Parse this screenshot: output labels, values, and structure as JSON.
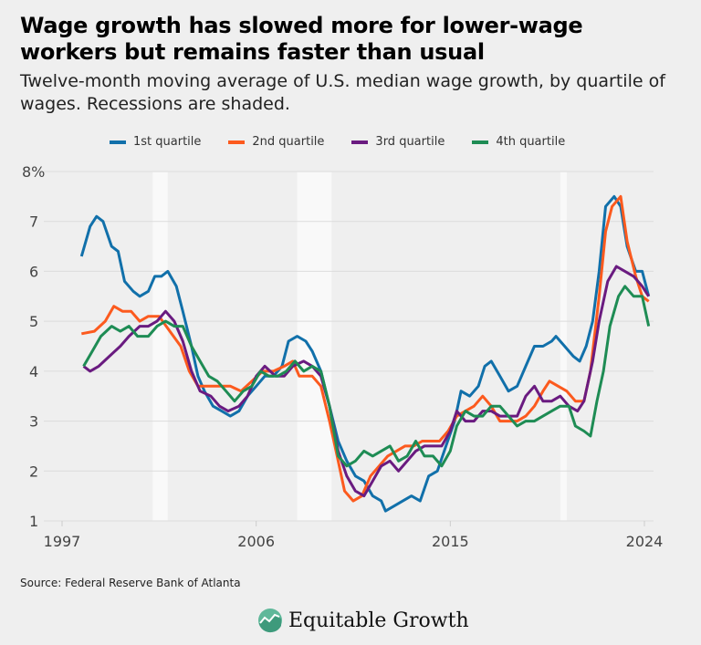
{
  "title": "Wage growth has slowed more for lower-wage workers but remains faster than usual",
  "subtitle": "Twelve-month moving average of U.S. median wage growth, by quartile of wages. Recessions are shaded.",
  "source": "Source: Federal Reserve Bank of Atlanta",
  "logo_text": "Equitable Growth",
  "chart_data": {
    "type": "line",
    "title": "Wage growth has slowed more for lower-wage workers but remains faster than usual",
    "xlabel": "",
    "ylabel": "",
    "xlim": [
      1997,
      2024.5
    ],
    "ylim": [
      1,
      8
    ],
    "x_ticks": [
      1997,
      2006,
      2015,
      2024
    ],
    "x_tick_labels": [
      "1997",
      "2006",
      "2015",
      "2024"
    ],
    "y_ticks": [
      1,
      2,
      3,
      4,
      5,
      6,
      7,
      8
    ],
    "y_tick_labels": [
      "1",
      "2",
      "3",
      "4",
      "5",
      "6",
      "7",
      "8%"
    ],
    "grid": "horizontal",
    "legend_position": "top",
    "recessions": [
      [
        2001.2,
        2001.9
      ],
      [
        2007.9,
        2009.5
      ],
      [
        2020.1,
        2020.4
      ]
    ],
    "series": [
      {
        "name": "1st quartile",
        "color": "#1170aa",
        "points": [
          [
            1997.9,
            6.3
          ],
          [
            1998.3,
            6.9
          ],
          [
            1998.6,
            7.1
          ],
          [
            1998.9,
            7.0
          ],
          [
            1999.3,
            6.5
          ],
          [
            1999.6,
            6.4
          ],
          [
            1999.9,
            5.8
          ],
          [
            2000.3,
            5.6
          ],
          [
            2000.6,
            5.5
          ],
          [
            2001.0,
            5.6
          ],
          [
            2001.3,
            5.9
          ],
          [
            2001.6,
            5.9
          ],
          [
            2001.9,
            6.0
          ],
          [
            2002.3,
            5.7
          ],
          [
            2002.6,
            5.2
          ],
          [
            2003.0,
            4.5
          ],
          [
            2003.3,
            3.9
          ],
          [
            2003.6,
            3.6
          ],
          [
            2004.0,
            3.3
          ],
          [
            2004.4,
            3.2
          ],
          [
            2004.8,
            3.1
          ],
          [
            2005.2,
            3.2
          ],
          [
            2005.6,
            3.5
          ],
          [
            2006.0,
            3.7
          ],
          [
            2006.4,
            3.9
          ],
          [
            2006.8,
            3.9
          ],
          [
            2007.2,
            4.1
          ],
          [
            2007.5,
            4.6
          ],
          [
            2007.9,
            4.7
          ],
          [
            2008.3,
            4.6
          ],
          [
            2008.6,
            4.4
          ],
          [
            2009.0,
            4.0
          ],
          [
            2009.4,
            3.3
          ],
          [
            2009.8,
            2.6
          ],
          [
            2010.2,
            2.2
          ],
          [
            2010.6,
            1.9
          ],
          [
            2011.0,
            1.8
          ],
          [
            2011.4,
            1.5
          ],
          [
            2011.8,
            1.4
          ],
          [
            2012.0,
            1.2
          ],
          [
            2012.4,
            1.3
          ],
          [
            2012.8,
            1.4
          ],
          [
            2013.2,
            1.5
          ],
          [
            2013.6,
            1.4
          ],
          [
            2014.0,
            1.9
          ],
          [
            2014.4,
            2.0
          ],
          [
            2014.8,
            2.5
          ],
          [
            2015.2,
            3.0
          ],
          [
            2015.5,
            3.6
          ],
          [
            2015.9,
            3.5
          ],
          [
            2016.3,
            3.7
          ],
          [
            2016.6,
            4.1
          ],
          [
            2016.9,
            4.2
          ],
          [
            2017.3,
            3.9
          ],
          [
            2017.7,
            3.6
          ],
          [
            2018.1,
            3.7
          ],
          [
            2018.5,
            4.1
          ],
          [
            2018.9,
            4.5
          ],
          [
            2019.3,
            4.5
          ],
          [
            2019.7,
            4.6
          ],
          [
            2019.9,
            4.7
          ],
          [
            2020.3,
            4.5
          ],
          [
            2020.7,
            4.3
          ],
          [
            2021.0,
            4.2
          ],
          [
            2021.3,
            4.5
          ],
          [
            2021.6,
            5.0
          ],
          [
            2021.9,
            6.0
          ],
          [
            2022.2,
            7.3
          ],
          [
            2022.6,
            7.5
          ],
          [
            2022.9,
            7.3
          ],
          [
            2023.2,
            6.5
          ],
          [
            2023.6,
            6.0
          ],
          [
            2023.9,
            6.0
          ],
          [
            2024.2,
            5.5
          ]
        ]
      },
      {
        "name": "2nd quartile",
        "color": "#fc5a1e",
        "points": [
          [
            1997.9,
            4.75
          ],
          [
            1998.5,
            4.8
          ],
          [
            1999.0,
            5.0
          ],
          [
            1999.4,
            5.3
          ],
          [
            1999.8,
            5.2
          ],
          [
            2000.2,
            5.2
          ],
          [
            2000.6,
            5.0
          ],
          [
            2001.0,
            5.1
          ],
          [
            2001.5,
            5.1
          ],
          [
            2002.0,
            4.8
          ],
          [
            2002.5,
            4.5
          ],
          [
            2002.9,
            4.0
          ],
          [
            2003.3,
            3.7
          ],
          [
            2003.8,
            3.7
          ],
          [
            2004.3,
            3.7
          ],
          [
            2004.8,
            3.7
          ],
          [
            2005.3,
            3.6
          ],
          [
            2005.8,
            3.8
          ],
          [
            2006.3,
            4.0
          ],
          [
            2006.8,
            4.0
          ],
          [
            2007.3,
            4.1
          ],
          [
            2007.7,
            4.2
          ],
          [
            2008.0,
            3.9
          ],
          [
            2008.6,
            3.9
          ],
          [
            2009.0,
            3.7
          ],
          [
            2009.4,
            3.0
          ],
          [
            2009.8,
            2.2
          ],
          [
            2010.1,
            1.6
          ],
          [
            2010.5,
            1.4
          ],
          [
            2010.9,
            1.5
          ],
          [
            2011.3,
            1.9
          ],
          [
            2011.7,
            2.1
          ],
          [
            2012.1,
            2.3
          ],
          [
            2012.5,
            2.4
          ],
          [
            2012.9,
            2.5
          ],
          [
            2013.3,
            2.5
          ],
          [
            2013.7,
            2.6
          ],
          [
            2014.1,
            2.6
          ],
          [
            2014.5,
            2.6
          ],
          [
            2014.9,
            2.8
          ],
          [
            2015.3,
            3.1
          ],
          [
            2015.7,
            3.2
          ],
          [
            2016.1,
            3.3
          ],
          [
            2016.5,
            3.5
          ],
          [
            2016.9,
            3.3
          ],
          [
            2017.3,
            3.0
          ],
          [
            2017.7,
            3.0
          ],
          [
            2018.1,
            3.0
          ],
          [
            2018.5,
            3.1
          ],
          [
            2018.9,
            3.3
          ],
          [
            2019.3,
            3.6
          ],
          [
            2019.6,
            3.8
          ],
          [
            2020.0,
            3.7
          ],
          [
            2020.4,
            3.6
          ],
          [
            2020.8,
            3.4
          ],
          [
            2021.2,
            3.4
          ],
          [
            2021.5,
            4.0
          ],
          [
            2021.9,
            5.5
          ],
          [
            2022.2,
            6.8
          ],
          [
            2022.5,
            7.3
          ],
          [
            2022.9,
            7.5
          ],
          [
            2023.2,
            6.6
          ],
          [
            2023.6,
            5.9
          ],
          [
            2023.9,
            5.5
          ],
          [
            2024.2,
            5.4
          ]
        ]
      },
      {
        "name": "3rd quartile",
        "color": "#6a1b80",
        "points": [
          [
            1998.0,
            4.1
          ],
          [
            1998.3,
            4.0
          ],
          [
            1998.7,
            4.1
          ],
          [
            1999.2,
            4.3
          ],
          [
            1999.7,
            4.5
          ],
          [
            2000.1,
            4.7
          ],
          [
            2000.6,
            4.9
          ],
          [
            2001.0,
            4.9
          ],
          [
            2001.4,
            5.0
          ],
          [
            2001.8,
            5.2
          ],
          [
            2002.2,
            5.0
          ],
          [
            2002.6,
            4.6
          ],
          [
            2003.0,
            4.0
          ],
          [
            2003.4,
            3.6
          ],
          [
            2003.9,
            3.5
          ],
          [
            2004.3,
            3.3
          ],
          [
            2004.7,
            3.2
          ],
          [
            2005.2,
            3.3
          ],
          [
            2005.6,
            3.5
          ],
          [
            2006.0,
            3.9
          ],
          [
            2006.4,
            4.1
          ],
          [
            2006.9,
            3.9
          ],
          [
            2007.3,
            3.9
          ],
          [
            2007.7,
            4.1
          ],
          [
            2008.2,
            4.2
          ],
          [
            2008.6,
            4.1
          ],
          [
            2009.0,
            3.9
          ],
          [
            2009.4,
            3.3
          ],
          [
            2009.8,
            2.4
          ],
          [
            2010.2,
            1.9
          ],
          [
            2010.6,
            1.6
          ],
          [
            2011.0,
            1.5
          ],
          [
            2011.4,
            1.8
          ],
          [
            2011.8,
            2.1
          ],
          [
            2012.2,
            2.2
          ],
          [
            2012.6,
            2.0
          ],
          [
            2013.0,
            2.2
          ],
          [
            2013.4,
            2.4
          ],
          [
            2013.8,
            2.5
          ],
          [
            2014.2,
            2.5
          ],
          [
            2014.6,
            2.5
          ],
          [
            2015.0,
            2.8
          ],
          [
            2015.3,
            3.2
          ],
          [
            2015.7,
            3.0
          ],
          [
            2016.1,
            3.0
          ],
          [
            2016.5,
            3.2
          ],
          [
            2016.9,
            3.2
          ],
          [
            2017.3,
            3.1
          ],
          [
            2017.7,
            3.1
          ],
          [
            2018.1,
            3.1
          ],
          [
            2018.5,
            3.5
          ],
          [
            2018.9,
            3.7
          ],
          [
            2019.3,
            3.4
          ],
          [
            2019.7,
            3.4
          ],
          [
            2020.1,
            3.5
          ],
          [
            2020.5,
            3.3
          ],
          [
            2020.9,
            3.2
          ],
          [
            2021.2,
            3.4
          ],
          [
            2021.6,
            4.2
          ],
          [
            2021.9,
            5.0
          ],
          [
            2022.3,
            5.8
          ],
          [
            2022.7,
            6.1
          ],
          [
            2023.1,
            6.0
          ],
          [
            2023.5,
            5.9
          ],
          [
            2023.9,
            5.7
          ],
          [
            2024.2,
            5.5
          ]
        ]
      },
      {
        "name": "4th quartile",
        "color": "#1e8c54",
        "points": [
          [
            1998.0,
            4.1
          ],
          [
            1998.4,
            4.4
          ],
          [
            1998.8,
            4.7
          ],
          [
            1999.3,
            4.9
          ],
          [
            1999.7,
            4.8
          ],
          [
            2000.1,
            4.9
          ],
          [
            2000.5,
            4.7
          ],
          [
            2001.0,
            4.7
          ],
          [
            2001.4,
            4.9
          ],
          [
            2001.8,
            5.0
          ],
          [
            2002.2,
            4.9
          ],
          [
            2002.6,
            4.9
          ],
          [
            2003.0,
            4.5
          ],
          [
            2003.4,
            4.2
          ],
          [
            2003.8,
            3.9
          ],
          [
            2004.2,
            3.8
          ],
          [
            2004.6,
            3.6
          ],
          [
            2005.0,
            3.4
          ],
          [
            2005.4,
            3.6
          ],
          [
            2005.8,
            3.7
          ],
          [
            2006.2,
            4.0
          ],
          [
            2006.6,
            3.9
          ],
          [
            2007.0,
            3.9
          ],
          [
            2007.4,
            4.0
          ],
          [
            2007.8,
            4.2
          ],
          [
            2008.2,
            4.0
          ],
          [
            2008.6,
            4.1
          ],
          [
            2009.0,
            4.0
          ],
          [
            2009.4,
            3.3
          ],
          [
            2009.8,
            2.3
          ],
          [
            2010.2,
            2.1
          ],
          [
            2010.6,
            2.2
          ],
          [
            2011.0,
            2.4
          ],
          [
            2011.4,
            2.3
          ],
          [
            2011.8,
            2.4
          ],
          [
            2012.2,
            2.5
          ],
          [
            2012.6,
            2.2
          ],
          [
            2013.0,
            2.3
          ],
          [
            2013.4,
            2.6
          ],
          [
            2013.8,
            2.3
          ],
          [
            2014.2,
            2.3
          ],
          [
            2014.6,
            2.1
          ],
          [
            2015.0,
            2.4
          ],
          [
            2015.3,
            2.9
          ],
          [
            2015.7,
            3.2
          ],
          [
            2016.1,
            3.1
          ],
          [
            2016.5,
            3.1
          ],
          [
            2016.9,
            3.3
          ],
          [
            2017.3,
            3.3
          ],
          [
            2017.7,
            3.1
          ],
          [
            2018.1,
            2.9
          ],
          [
            2018.5,
            3.0
          ],
          [
            2018.9,
            3.0
          ],
          [
            2019.3,
            3.1
          ],
          [
            2019.7,
            3.2
          ],
          [
            2020.1,
            3.3
          ],
          [
            2020.5,
            3.3
          ],
          [
            2020.8,
            2.9
          ],
          [
            2021.2,
            2.8
          ],
          [
            2021.5,
            2.7
          ],
          [
            2021.8,
            3.4
          ],
          [
            2022.1,
            4.0
          ],
          [
            2022.4,
            4.9
          ],
          [
            2022.8,
            5.5
          ],
          [
            2023.1,
            5.7
          ],
          [
            2023.5,
            5.5
          ],
          [
            2023.9,
            5.5
          ],
          [
            2024.2,
            4.9
          ]
        ]
      }
    ]
  }
}
